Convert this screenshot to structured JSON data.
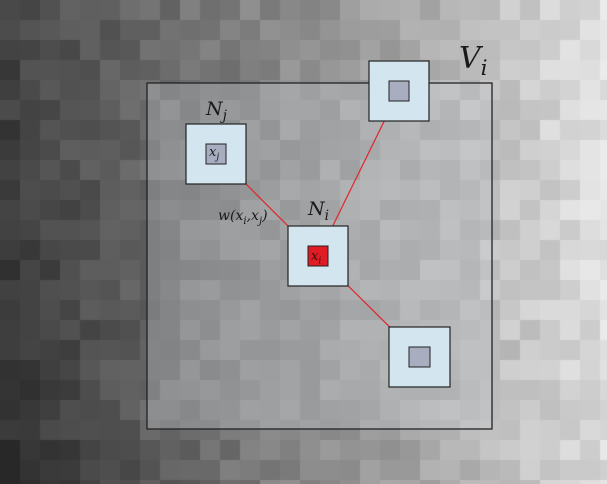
{
  "labels": {
    "window": "V",
    "window_sub": "i",
    "neighborhood_j": "N",
    "neighborhood_j_sub": "j",
    "neighborhood_i": "N",
    "neighborhood_i_sub": "i",
    "pixel_j": "x",
    "pixel_j_sub": "j",
    "pixel_i": "x",
    "pixel_i_sub": "i",
    "weight_prefix": "w(x",
    "weight_sub_i": "i",
    "weight_mid": ",x",
    "weight_sub_j": "j",
    "weight_suffix": ")"
  },
  "colors": {
    "connector": "#e0262b",
    "center_pixel": "#e01b24",
    "patch_fill": "#d3e5ef",
    "pixel_fill": "#a8adbf",
    "window_fill": "rgba(200,205,210,0.32)",
    "outline": "#222222"
  }
}
